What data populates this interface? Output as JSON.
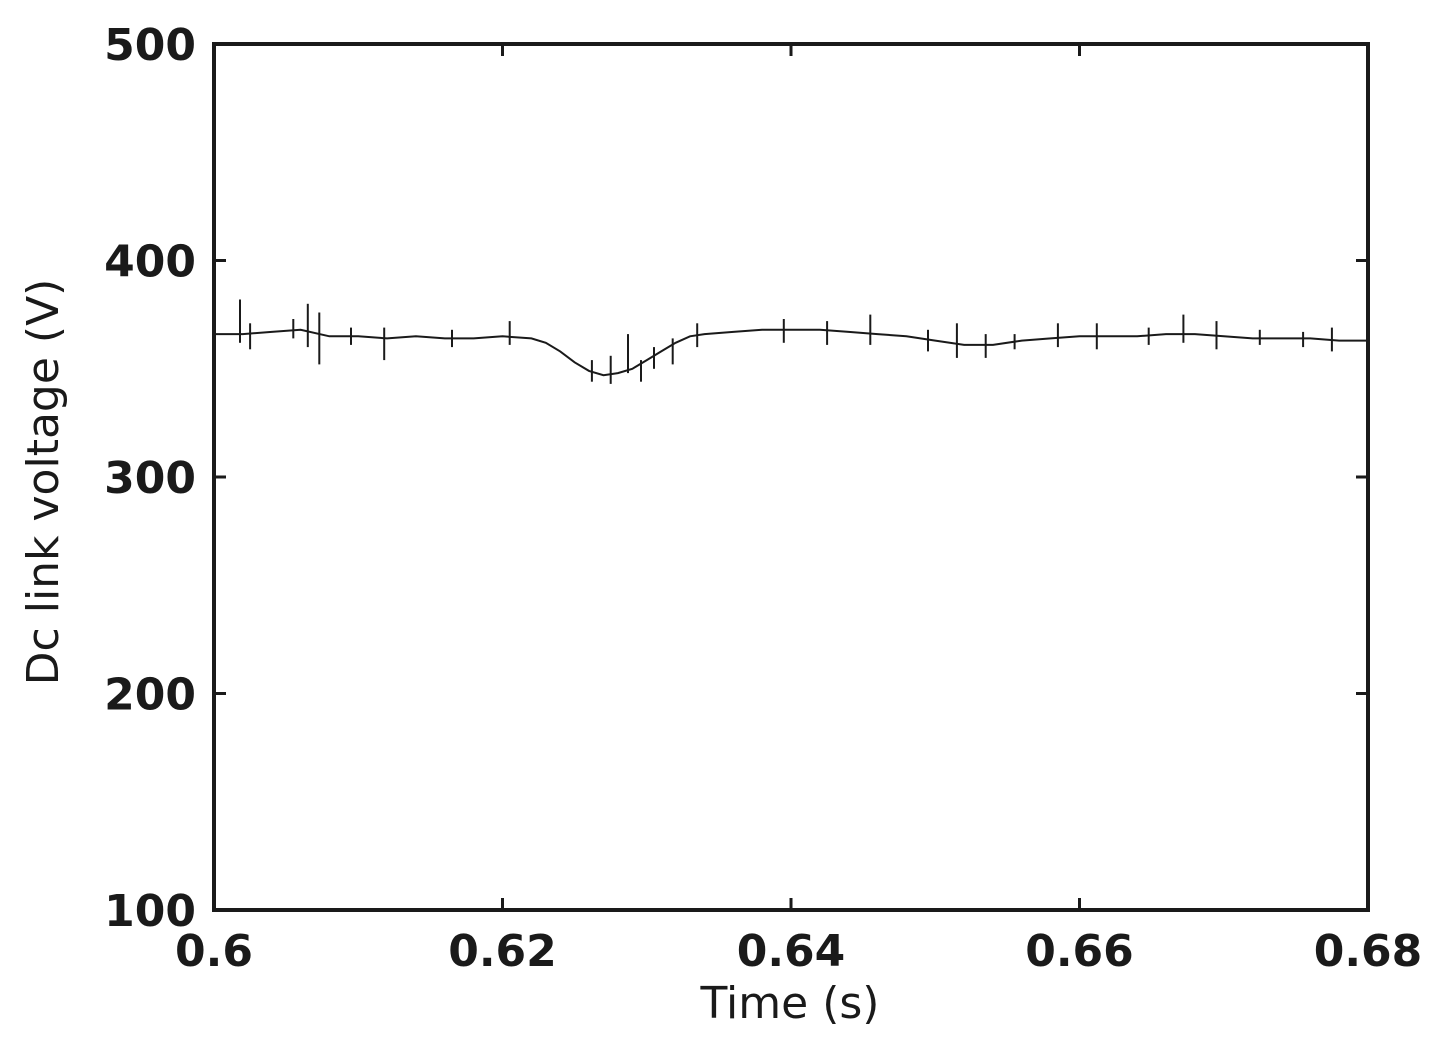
{
  "chart_data": {
    "type": "line",
    "title": "",
    "xlabel": "Time (s)",
    "ylabel": "Dc link voltage (V)",
    "xlim": [
      0.6,
      0.68
    ],
    "ylim": [
      100,
      500
    ],
    "x_ticks": [
      0.6,
      0.62,
      0.64,
      0.66,
      0.68
    ],
    "x_tick_labels": [
      "0.6",
      "0.62",
      "0.64",
      "0.66",
      "0.68"
    ],
    "y_ticks": [
      100,
      200,
      300,
      400,
      500
    ],
    "y_tick_labels": [
      "100",
      "200",
      "300",
      "400",
      "500"
    ],
    "grid": false,
    "series": [
      {
        "color": "#1a1a1a",
        "x": [
          0.6,
          0.602,
          0.604,
          0.606,
          0.608,
          0.61,
          0.612,
          0.614,
          0.616,
          0.618,
          0.62,
          0.622,
          0.623,
          0.624,
          0.625,
          0.626,
          0.627,
          0.628,
          0.629,
          0.63,
          0.631,
          0.632,
          0.633,
          0.634,
          0.636,
          0.638,
          0.64,
          0.642,
          0.644,
          0.646,
          0.648,
          0.65,
          0.652,
          0.654,
          0.656,
          0.658,
          0.66,
          0.662,
          0.664,
          0.666,
          0.668,
          0.67,
          0.672,
          0.674,
          0.676,
          0.678,
          0.68
        ],
        "y": [
          366,
          366,
          367,
          368,
          365,
          365,
          364,
          365,
          364,
          364,
          365,
          364,
          362,
          358,
          353,
          349,
          347,
          348,
          350,
          354,
          358,
          362,
          365,
          366,
          367,
          368,
          368,
          368,
          367,
          366,
          365,
          363,
          361,
          361,
          363,
          364,
          365,
          365,
          365,
          366,
          366,
          365,
          364,
          364,
          364,
          363,
          363
        ]
      }
    ],
    "spikes": [
      {
        "x": 0.6018,
        "y_low": 362,
        "y_high": 382
      },
      {
        "x": 0.6025,
        "y_low": 359,
        "y_high": 371
      },
      {
        "x": 0.6055,
        "y_low": 364,
        "y_high": 373
      },
      {
        "x": 0.6065,
        "y_low": 360,
        "y_high": 380
      },
      {
        "x": 0.6073,
        "y_low": 352,
        "y_high": 376
      },
      {
        "x": 0.6095,
        "y_low": 361,
        "y_high": 369
      },
      {
        "x": 0.6118,
        "y_low": 354,
        "y_high": 369
      },
      {
        "x": 0.6165,
        "y_low": 360,
        "y_high": 368
      },
      {
        "x": 0.6205,
        "y_low": 361,
        "y_high": 372
      },
      {
        "x": 0.6262,
        "y_low": 344,
        "y_high": 354
      },
      {
        "x": 0.6275,
        "y_low": 343,
        "y_high": 356
      },
      {
        "x": 0.6287,
        "y_low": 348,
        "y_high": 366
      },
      {
        "x": 0.6296,
        "y_low": 344,
        "y_high": 354
      },
      {
        "x": 0.6305,
        "y_low": 350,
        "y_high": 360
      },
      {
        "x": 0.6318,
        "y_low": 352,
        "y_high": 364
      },
      {
        "x": 0.6335,
        "y_low": 360,
        "y_high": 371
      },
      {
        "x": 0.6395,
        "y_low": 362,
        "y_high": 373
      },
      {
        "x": 0.6425,
        "y_low": 361,
        "y_high": 372
      },
      {
        "x": 0.6455,
        "y_low": 361,
        "y_high": 375
      },
      {
        "x": 0.6495,
        "y_low": 358,
        "y_high": 368
      },
      {
        "x": 0.6515,
        "y_low": 355,
        "y_high": 371
      },
      {
        "x": 0.6535,
        "y_low": 355,
        "y_high": 366
      },
      {
        "x": 0.6555,
        "y_low": 359,
        "y_high": 366
      },
      {
        "x": 0.6585,
        "y_low": 360,
        "y_high": 371
      },
      {
        "x": 0.6612,
        "y_low": 359,
        "y_high": 371
      },
      {
        "x": 0.6648,
        "y_low": 361,
        "y_high": 369
      },
      {
        "x": 0.6672,
        "y_low": 362,
        "y_high": 375
      },
      {
        "x": 0.6695,
        "y_low": 359,
        "y_high": 372
      },
      {
        "x": 0.6725,
        "y_low": 361,
        "y_high": 368
      },
      {
        "x": 0.6755,
        "y_low": 360,
        "y_high": 367
      },
      {
        "x": 0.6775,
        "y_low": 358,
        "y_high": 369
      }
    ]
  }
}
